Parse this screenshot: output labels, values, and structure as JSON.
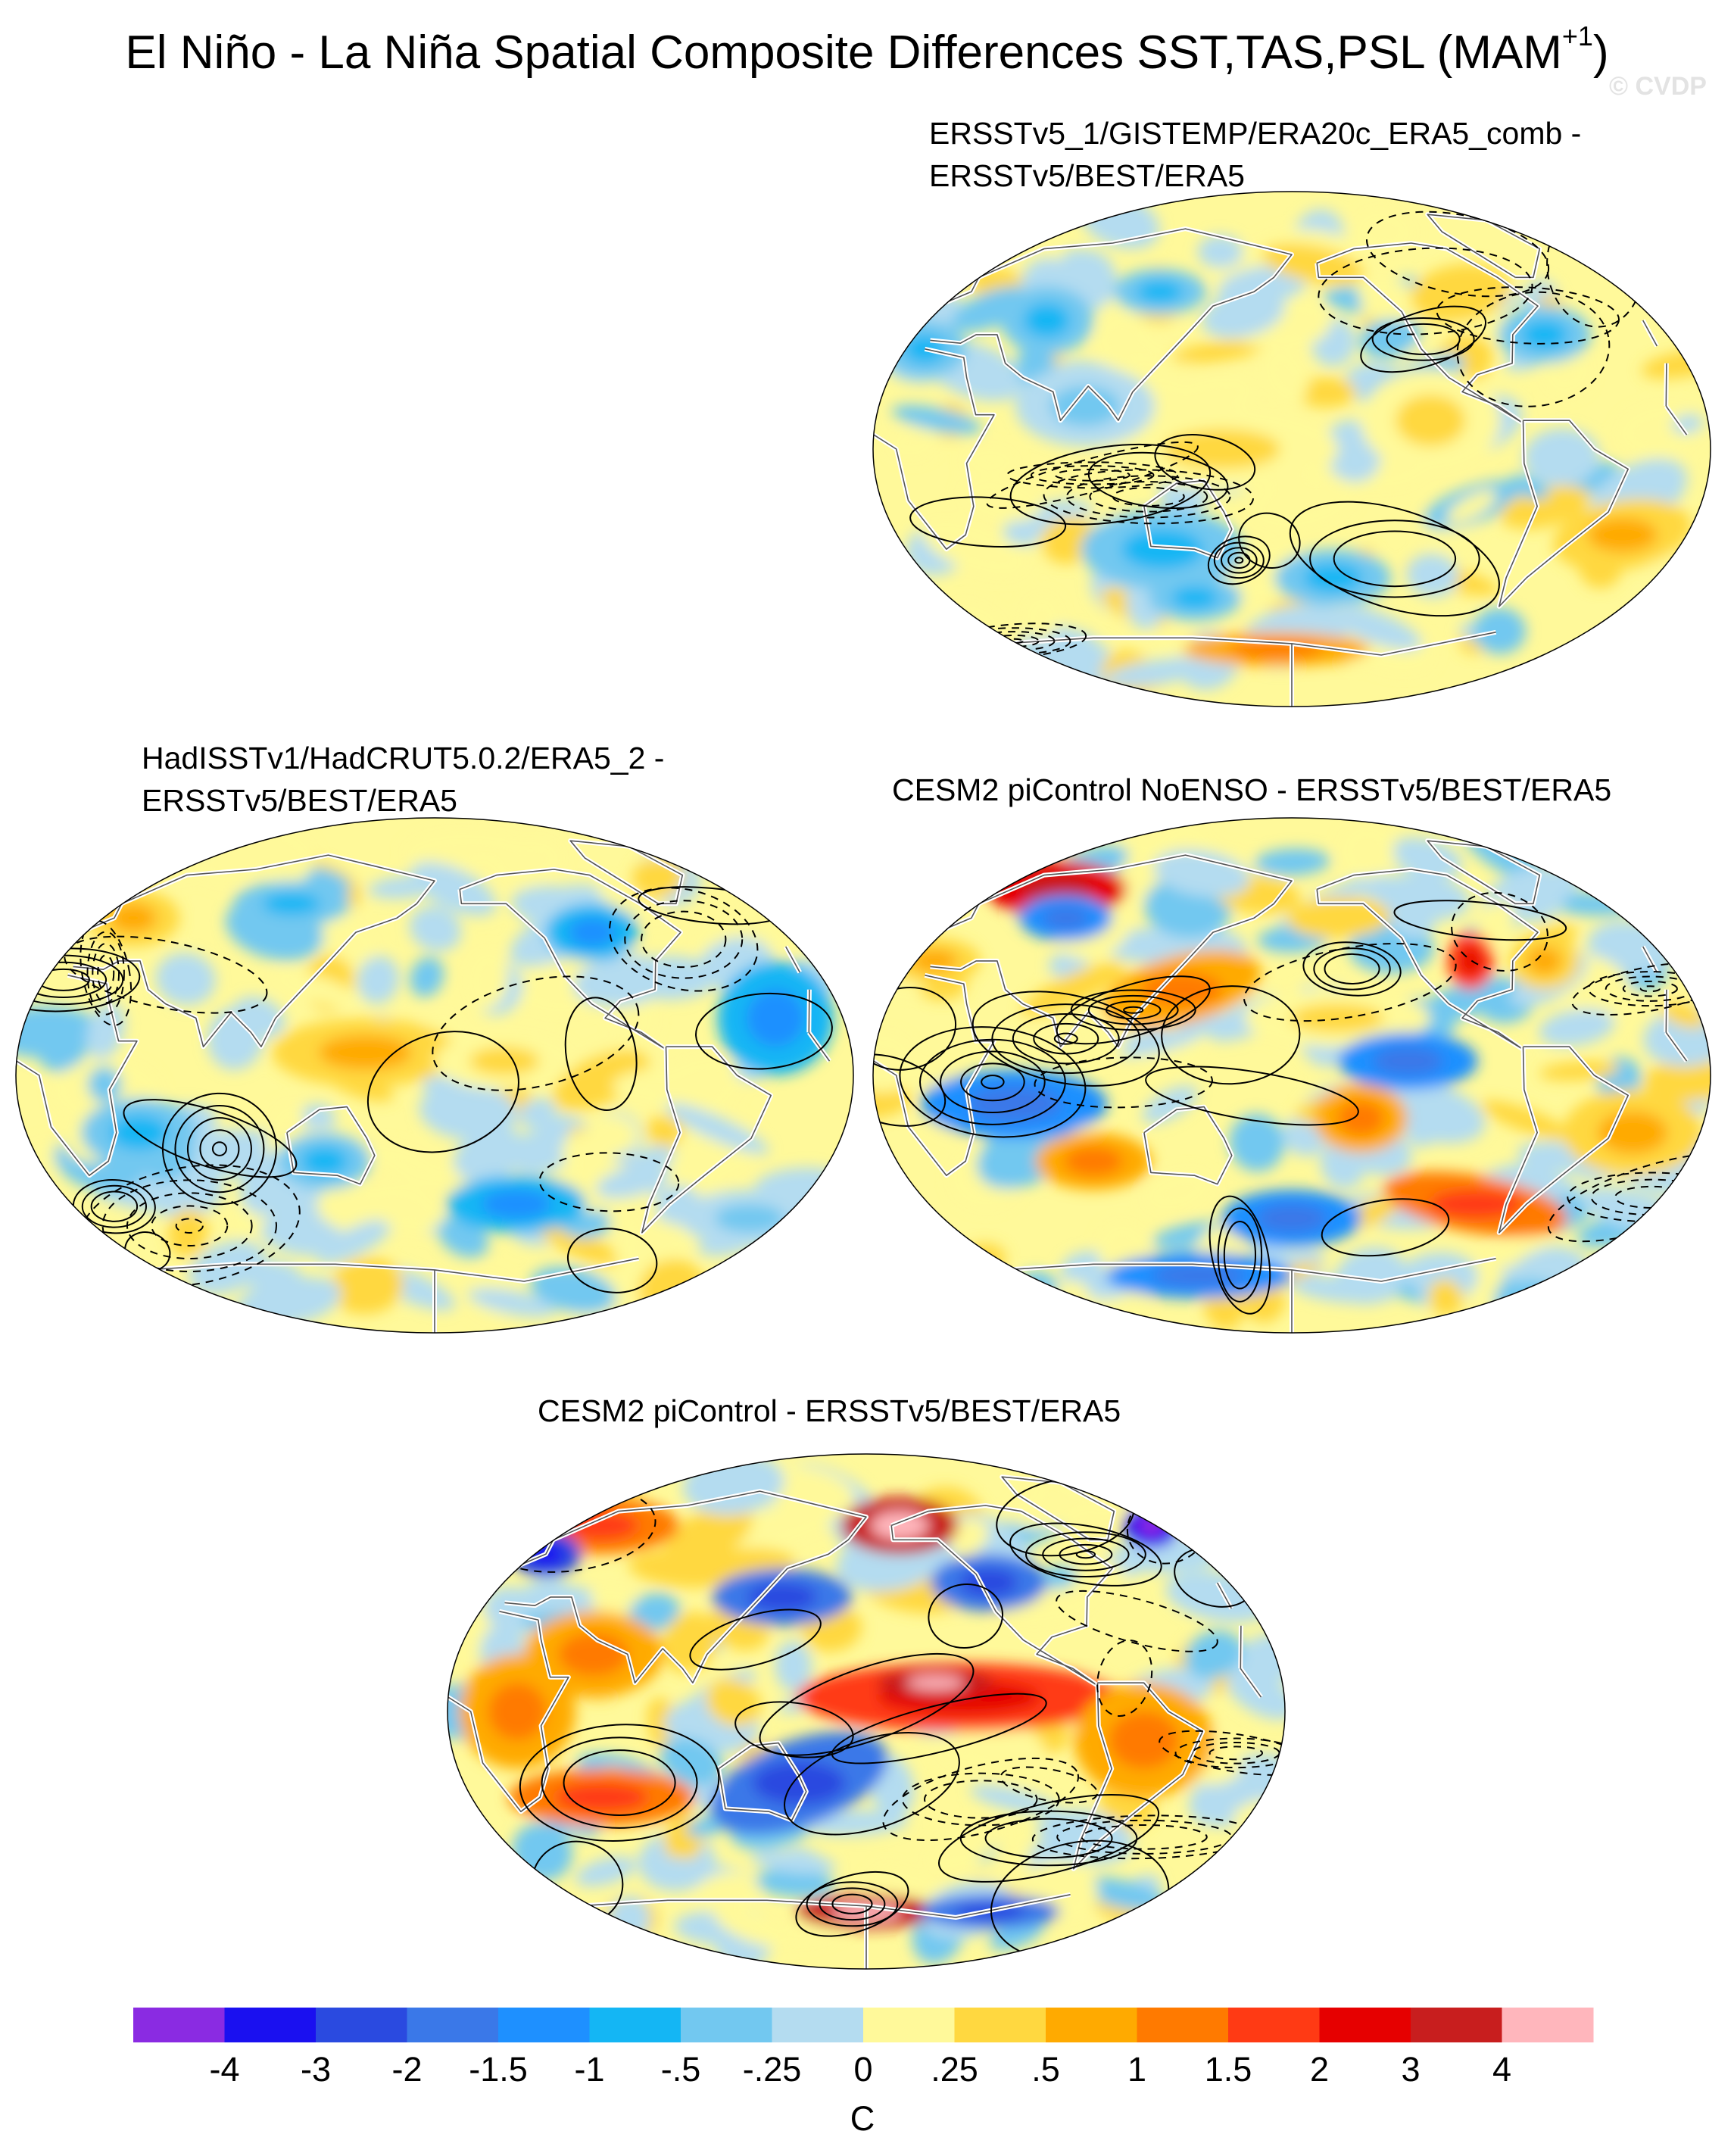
{
  "figure": {
    "title": "El Niño - La Niña Spatial Composite Differences SST,TAS,PSL (MAM",
    "title_superscript": "+1",
    "title_close": ")",
    "watermark": "© CVDP"
  },
  "panels": [
    {
      "title_line1": "ERSSTv5_1/GISTEMP/ERA20c_ERA5_comb -",
      "title_line2": "ERSSTv5/BEST/ERA5",
      "pattern": "weak",
      "blobs": [
        {
          "lon": 150,
          "lat": 0,
          "rx": 50,
          "ry": 14,
          "level": 8,
          "ang": 0
        },
        {
          "lon": -30,
          "lat": -30,
          "rx": 30,
          "ry": 12,
          "level": 9,
          "ang": -10
        },
        {
          "lon": 120,
          "lat": -35,
          "rx": 35,
          "ry": 14,
          "level": 6,
          "ang": 0
        },
        {
          "lon": 60,
          "lat": 45,
          "rx": 20,
          "ry": 12,
          "level": 6,
          "ang": 0
        },
        {
          "lon": 10,
          "lat": 35,
          "rx": 18,
          "ry": 10,
          "level": 6,
          "ang": 0
        },
        {
          "lon": 130,
          "lat": -52,
          "rx": 20,
          "ry": 8,
          "level": 6,
          "ang": 0
        },
        {
          "lon": -120,
          "lat": 10,
          "rx": 30,
          "ry": 18,
          "level": 8,
          "ang": 0
        },
        {
          "lon": -60,
          "lat": 40,
          "rx": 20,
          "ry": 10,
          "level": 6,
          "ang": 0
        },
        {
          "lon": 90,
          "lat": 15,
          "rx": 30,
          "ry": 14,
          "level": 7,
          "ang": 0
        },
        {
          "lon": 170,
          "lat": -70,
          "rx": 40,
          "ry": 6,
          "level": 10,
          "ang": 0
        },
        {
          "lon": -160,
          "lat": -45,
          "rx": 25,
          "ry": 10,
          "level": 6,
          "ang": 0
        },
        {
          "lon": 110,
          "lat": 55,
          "rx": 20,
          "ry": 8,
          "level": 6,
          "ang": 0
        }
      ]
    },
    {
      "title_line1": "HadISSTv1/HadCRUT5.0.2/ERA5_2 -",
      "title_line2": "ERSSTv5/BEST/ERA5",
      "pattern": "weak",
      "blobs": [
        {
          "lon": 150,
          "lat": 8,
          "rx": 40,
          "ry": 12,
          "level": 9,
          "ang": 0
        },
        {
          "lon": -150,
          "lat": 5,
          "rx": 30,
          "ry": 10,
          "level": 8,
          "ang": 0
        },
        {
          "lon": 20,
          "lat": 55,
          "rx": 20,
          "ry": 10,
          "level": 9,
          "ang": 0
        },
        {
          "lon": 50,
          "lat": -20,
          "rx": 25,
          "ry": 12,
          "level": 6,
          "ang": 0
        },
        {
          "lon": 130,
          "lat": -30,
          "rx": 20,
          "ry": 10,
          "level": 6,
          "ang": 0
        },
        {
          "lon": -30,
          "lat": 20,
          "rx": 25,
          "ry": 20,
          "level": 5,
          "ang": 0
        },
        {
          "lon": -140,
          "lat": -45,
          "rx": 30,
          "ry": 10,
          "level": 5,
          "ang": 0
        },
        {
          "lon": 100,
          "lat": 60,
          "rx": 25,
          "ry": 8,
          "level": 6,
          "ang": 0
        },
        {
          "lon": -100,
          "lat": 50,
          "rx": 20,
          "ry": 10,
          "level": 5,
          "ang": 0
        },
        {
          "lon": -20,
          "lat": -50,
          "rx": 30,
          "ry": 10,
          "level": 7,
          "ang": 0
        }
      ]
    },
    {
      "title_line1": "CESM2 piControl NoENSO - ERSSTv5/BEST/ERA5",
      "title_line2": "",
      "pattern": "moderate",
      "blobs": [
        {
          "lon": 40,
          "lat": 65,
          "rx": 30,
          "ry": 10,
          "level": 13,
          "ang": 0
        },
        {
          "lon": 130,
          "lat": 30,
          "rx": 35,
          "ry": 12,
          "level": 10,
          "ang": -15
        },
        {
          "lon": -160,
          "lat": 20,
          "rx": 40,
          "ry": 10,
          "level": 8,
          "ang": 0
        },
        {
          "lon": -95,
          "lat": 40,
          "rx": 10,
          "ry": 10,
          "level": 12,
          "ang": 0
        },
        {
          "lon": -60,
          "lat": 40,
          "rx": 15,
          "ry": 10,
          "level": 9,
          "ang": 0
        },
        {
          "lon": 90,
          "lat": -30,
          "rx": 25,
          "ry": 10,
          "level": 10,
          "ang": 0
        },
        {
          "lon": -150,
          "lat": -15,
          "rx": 20,
          "ry": 12,
          "level": 10,
          "ang": 0
        },
        {
          "lon": -90,
          "lat": -45,
          "rx": 40,
          "ry": 10,
          "level": 11,
          "ang": 10
        },
        {
          "lon": -30,
          "lat": -20,
          "rx": 30,
          "ry": 15,
          "level": 9,
          "ang": 0
        },
        {
          "lon": 10,
          "lat": 40,
          "rx": 20,
          "ry": 8,
          "level": 9,
          "ang": 0
        },
        {
          "lon": 60,
          "lat": 55,
          "rx": 20,
          "ry": 8,
          "level": 4,
          "ang": 0
        },
        {
          "lon": 180,
          "lat": -50,
          "rx": 30,
          "ry": 10,
          "level": 4,
          "ang": 0
        },
        {
          "lon": 60,
          "lat": -10,
          "rx": 40,
          "ry": 12,
          "level": 4,
          "ang": 0
        },
        {
          "lon": -130,
          "lat": 5,
          "rx": 30,
          "ry": 10,
          "level": 4,
          "ang": 0
        },
        {
          "lon": 120,
          "lat": -70,
          "rx": 40,
          "ry": 8,
          "level": 4,
          "ang": 0
        }
      ]
    },
    {
      "title_line1": "CESM2 piControl - ERSSTv5/BEST/ERA5",
      "title_line2": "",
      "pattern": "strong",
      "blobs": [
        {
          "lon": -140,
          "lat": 5,
          "rx": 70,
          "ry": 12,
          "level": 12,
          "ang": 0
        },
        {
          "lon": -150,
          "lat": 10,
          "rx": 25,
          "ry": 5,
          "level": 14,
          "ang": 0
        },
        {
          "lon": -160,
          "lat": 65,
          "rx": 25,
          "ry": 10,
          "level": 14,
          "ang": 0
        },
        {
          "lon": 20,
          "lat": 65,
          "rx": 35,
          "ry": 10,
          "level": 11,
          "ang": 0
        },
        {
          "lon": 60,
          "lat": 20,
          "rx": 30,
          "ry": 15,
          "level": 10,
          "ang": 0
        },
        {
          "lon": -60,
          "lat": -10,
          "rx": 30,
          "ry": 20,
          "level": 10,
          "ang": 0
        },
        {
          "lon": 30,
          "lat": 0,
          "rx": 25,
          "ry": 20,
          "level": 10,
          "ang": 0
        },
        {
          "lon": 60,
          "lat": -30,
          "rx": 40,
          "ry": 10,
          "level": 11,
          "ang": 0
        },
        {
          "lon": 180,
          "lat": -70,
          "rx": 30,
          "ry": 6,
          "level": 14,
          "ang": 0
        },
        {
          "lon": 150,
          "lat": -25,
          "rx": 40,
          "ry": 15,
          "level": 3,
          "ang": -20
        },
        {
          "lon": 140,
          "lat": 40,
          "rx": 30,
          "ry": 10,
          "level": 3,
          "ang": 0
        },
        {
          "lon": 10,
          "lat": 55,
          "rx": 15,
          "ry": 8,
          "level": 2,
          "ang": 0
        },
        {
          "lon": -120,
          "lat": 45,
          "rx": 25,
          "ry": 10,
          "level": 3,
          "ang": 0
        },
        {
          "lon": -10,
          "lat": 65,
          "rx": 12,
          "ry": 8,
          "level": 1,
          "ang": 0
        },
        {
          "lon": -100,
          "lat": -70,
          "rx": 30,
          "ry": 6,
          "level": 3,
          "ang": 0
        }
      ]
    }
  ],
  "colorbar": {
    "colors": [
      "#8a2be2",
      "#1a10f0",
      "#2a4ae0",
      "#3a78e8",
      "#1e90ff",
      "#14b6f4",
      "#72c8f0",
      "#b4dcf0",
      "#fff99a",
      "#ffd840",
      "#ffaa00",
      "#ff7a00",
      "#ff3a14",
      "#e60000",
      "#c81e1e",
      "#ffb6bc"
    ],
    "tick_labels": [
      "-4",
      "-3",
      "-2",
      "-1.5",
      "-1",
      "-.5",
      "-.25",
      "0",
      ".25",
      ".5",
      "1",
      "1.5",
      "2",
      "3",
      "4"
    ],
    "unit": "C"
  }
}
